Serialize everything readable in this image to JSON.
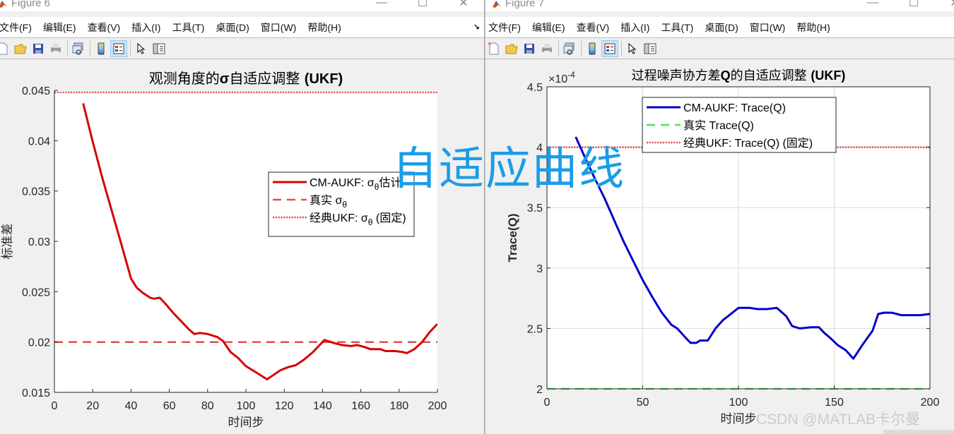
{
  "windows": [
    {
      "id": "figure6",
      "title": "Figure 6",
      "menu": [
        "文件(F)",
        "编辑(E)",
        "查看(V)",
        "插入(I)",
        "工具(T)",
        "桌面(D)",
        "窗口(W)",
        "帮助(H)"
      ],
      "controls": {
        "minimize": "—",
        "maximize": "☐",
        "close": "✕"
      },
      "dock_icon": "↘"
    },
    {
      "id": "figure7",
      "title": "Figure 7",
      "menu": [
        "文件(F)",
        "编辑(E)",
        "查看(V)",
        "插入(I)",
        "工具(T)",
        "桌面(D)",
        "窗口(W)",
        "帮助(H)"
      ],
      "controls": {
        "minimize": "—",
        "maximize": "☐",
        "close": "✕"
      }
    }
  ],
  "toolbar_icons": [
    "new-figure-icon",
    "open-file-icon",
    "save-icon",
    "print-icon",
    "link-plot-icon",
    "colorbar-icon",
    "legend-icon",
    "select-pointer-icon",
    "property-inspector-icon"
  ],
  "overlay": {
    "watermark_main": "自适应曲线",
    "watermark_csdn": "CSDN @MATLAB卡尔曼"
  },
  "colors": {
    "red_estimate": "#d90000",
    "red_true_dashed": "#e05050",
    "red_fixed_dotted": "#e05050",
    "blue_estimate": "#0000c8",
    "green_true_dashed": "#4ee04e",
    "watermark_blue": "#1a9de8"
  },
  "chart_data": [
    {
      "type": "line",
      "title": "观测角度的σ自适应调整 (UKF)",
      "xlabel": "时间步",
      "ylabel": "标准差",
      "xlim": [
        0,
        200
      ],
      "ylim": [
        0.015,
        0.045
      ],
      "xticks": [
        0,
        20,
        40,
        60,
        80,
        100,
        120,
        140,
        160,
        180,
        200
      ],
      "yticks": [
        0.015,
        0.02,
        0.025,
        0.03,
        0.035,
        0.04,
        0.045
      ],
      "ytick_labels": [
        "0.015",
        "0.02",
        "0.025",
        "0.03",
        "0.035",
        "0.04",
        "0.045"
      ],
      "grid": false,
      "legend_position": "right-middle",
      "series": [
        {
          "name": "CM-AUKF: σθ估计",
          "legend_label": "CM-AUKF: σ",
          "legend_sub": "θ",
          "legend_suffix": "估计",
          "style": "solid",
          "color": "#d90000",
          "x": [
            15,
            20,
            25,
            30,
            35,
            40,
            43,
            46,
            50,
            52,
            55,
            58,
            62,
            66,
            70,
            73,
            76,
            80,
            85,
            88,
            92,
            96,
            100,
            106,
            111,
            115,
            118,
            122,
            126,
            130,
            135,
            141,
            146,
            150,
            155,
            158,
            162,
            165,
            170,
            173,
            178,
            182,
            184,
            188,
            192,
            196,
            200
          ],
          "y": [
            0.0437,
            0.0399,
            0.0363,
            0.033,
            0.0297,
            0.0263,
            0.0254,
            0.0249,
            0.0244,
            0.0243,
            0.0244,
            0.0238,
            0.0229,
            0.0221,
            0.0213,
            0.0208,
            0.0209,
            0.0208,
            0.0205,
            0.0201,
            0.019,
            0.0184,
            0.0176,
            0.0169,
            0.0163,
            0.0168,
            0.0172,
            0.0175,
            0.0177,
            0.0182,
            0.019,
            0.0202,
            0.0199,
            0.0197,
            0.0196,
            0.0197,
            0.0195,
            0.0193,
            0.0193,
            0.0191,
            0.0191,
            0.019,
            0.0189,
            0.0193,
            0.02,
            0.021,
            0.0218
          ]
        },
        {
          "name": "真实 σθ",
          "legend_label": "真实 σ",
          "legend_sub": "θ",
          "legend_suffix": "",
          "style": "dashed",
          "color": "#e05050",
          "x": [
            0,
            200
          ],
          "y": [
            0.02,
            0.02
          ]
        },
        {
          "name": "经典UKF: σθ (固定)",
          "legend_label": "经典UKF: σ",
          "legend_sub": "θ",
          "legend_suffix": " (固定)",
          "style": "dotted",
          "color": "#e05050",
          "x": [
            0,
            200
          ],
          "y": [
            0.0448,
            0.0448
          ]
        }
      ]
    },
    {
      "type": "line",
      "title": "过程噪声协方差Q的自适应调整 (UKF)",
      "xlabel": "时间步",
      "ylabel": "Trace(Q)",
      "y_exponent_label": "×10",
      "y_exponent": "-4",
      "xlim": [
        0,
        200
      ],
      "ylim": [
        2.0,
        4.5
      ],
      "xticks": [
        0,
        50,
        100,
        150,
        200
      ],
      "yticks": [
        2,
        2.5,
        3,
        3.5,
        4,
        4.5
      ],
      "ytick_labels": [
        "2",
        "2.5",
        "3",
        "3.5",
        "4",
        "4.5"
      ],
      "grid": true,
      "legend_position": "top-center",
      "series": [
        {
          "name": "CM-AUKF: Trace(Q)",
          "legend_label": "CM-AUKF: Trace(Q)",
          "style": "solid",
          "color": "#0000c8",
          "x": [
            15,
            20,
            25,
            30,
            35,
            40,
            45,
            50,
            55,
            60,
            65,
            68,
            72,
            75,
            78,
            80,
            84,
            88,
            92,
            96,
            100,
            103,
            106,
            110,
            115,
            120,
            125,
            128,
            132,
            138,
            142,
            145,
            148,
            152,
            156,
            160,
            165,
            170,
            173,
            176,
            180,
            185,
            190,
            195,
            200
          ],
          "y": [
            4.085,
            3.91,
            3.74,
            3.58,
            3.4,
            3.22,
            3.06,
            2.9,
            2.76,
            2.63,
            2.53,
            2.5,
            2.43,
            2.38,
            2.38,
            2.4,
            2.4,
            2.5,
            2.57,
            2.62,
            2.67,
            2.67,
            2.67,
            2.66,
            2.66,
            2.67,
            2.6,
            2.52,
            2.5,
            2.51,
            2.51,
            2.46,
            2.42,
            2.36,
            2.32,
            2.25,
            2.37,
            2.48,
            2.62,
            2.63,
            2.63,
            2.61,
            2.61,
            2.61,
            2.62
          ]
        },
        {
          "name": "真实 Trace(Q)",
          "legend_label": "真实 Trace(Q)",
          "style": "dashed",
          "color": "#4ee04e",
          "x": [
            0,
            200
          ],
          "y": [
            2.0,
            2.0
          ]
        },
        {
          "name": "经典UKF: Trace(Q) (固定)",
          "legend_label": "经典UKF: Trace(Q) (固定)",
          "style": "dotted",
          "color": "#e05050",
          "x": [
            0,
            200
          ],
          "y": [
            4.0,
            4.0
          ]
        }
      ]
    }
  ]
}
